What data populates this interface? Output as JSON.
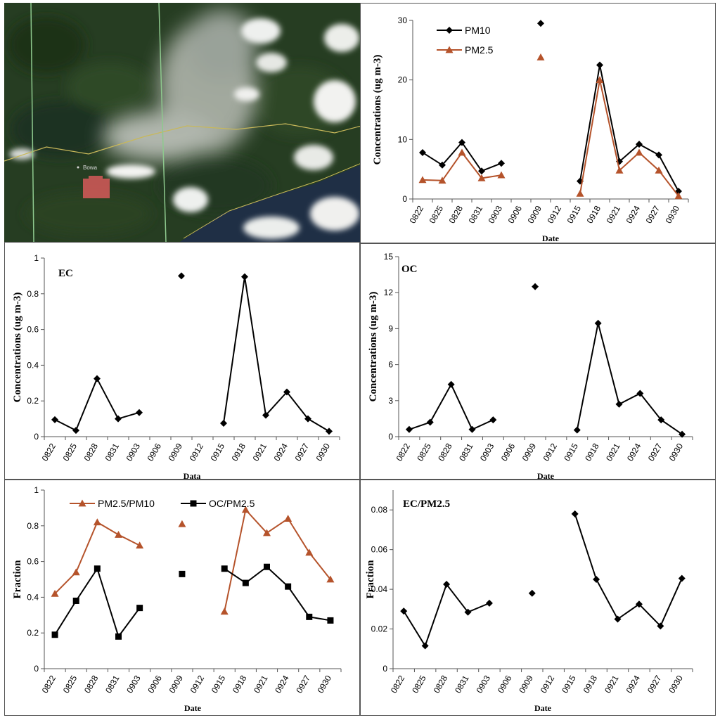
{
  "satellite": {
    "city_label": "Bowa",
    "colors": {
      "forest": "#263d22",
      "smoke": "#c9ccc6",
      "cloud": "#f2f2f0",
      "water": "#1f2f45",
      "fire": "#d65a5a",
      "border": "#c8b85a",
      "grid": "#8ec98e"
    }
  },
  "chart_data": [
    {
      "id": "pm",
      "type": "line",
      "title": "",
      "xlabel": "Date",
      "ylabel": "Concentrations (ug m-3)",
      "ylim": [
        0,
        30
      ],
      "yticks": [
        "0",
        "10",
        "20",
        "30"
      ],
      "categories": [
        "0822",
        "0825",
        "0828",
        "0831",
        "0903",
        "0906",
        "0909",
        "0912",
        "0915",
        "0918",
        "0921",
        "0924",
        "0927",
        "0930"
      ],
      "legend": "top-left",
      "series": [
        {
          "name": "PM10",
          "color": "#000000",
          "marker": "diamond",
          "values": [
            7.8,
            5.7,
            9.5,
            4.7,
            6.0,
            null,
            29.5,
            null,
            3.0,
            22.5,
            6.3,
            9.2,
            7.4,
            1.3
          ]
        },
        {
          "name": "PM2.5",
          "color": "#b5532b",
          "marker": "triangle",
          "values": [
            3.2,
            3.1,
            7.8,
            3.5,
            4.0,
            null,
            23.8,
            null,
            0.9,
            20.0,
            4.8,
            7.8,
            4.8,
            0.5
          ]
        }
      ]
    },
    {
      "id": "ec",
      "type": "line",
      "title": "EC",
      "xlabel": "Data",
      "ylabel": "Concentrations (ug m-3)",
      "ylim": [
        0,
        1
      ],
      "yticks": [
        "0",
        "0.2",
        "0.4",
        "0.6",
        "0.8",
        "1"
      ],
      "categories": [
        "0822",
        "0825",
        "0828",
        "0831",
        "0903",
        "0906",
        "0909",
        "0912",
        "0915",
        "0918",
        "0921",
        "0924",
        "0927",
        "0930"
      ],
      "series": [
        {
          "color": "#000000",
          "marker": "diamond",
          "values": [
            0.095,
            0.035,
            0.325,
            0.1,
            0.135,
            null,
            0.9,
            null,
            0.075,
            0.895,
            0.12,
            0.25,
            0.1,
            0.03
          ]
        }
      ]
    },
    {
      "id": "oc",
      "type": "line",
      "title": "OC",
      "xlabel": "Date",
      "ylabel": "Concentrations (ug m-3)",
      "ylim": [
        0,
        15
      ],
      "yticks": [
        "0",
        "3",
        "6",
        "9",
        "12",
        "15"
      ],
      "categories": [
        "0822",
        "0825",
        "0828",
        "0831",
        "0903",
        "0906",
        "0909",
        "0912",
        "0915",
        "0918",
        "0921",
        "0924",
        "0927",
        "0930"
      ],
      "series": [
        {
          "color": "#000000",
          "marker": "diamond",
          "values": [
            0.6,
            1.2,
            4.35,
            0.6,
            1.4,
            null,
            12.5,
            null,
            0.55,
            9.45,
            2.7,
            3.6,
            1.4,
            0.2
          ]
        }
      ]
    },
    {
      "id": "frac",
      "type": "line",
      "title": "",
      "xlabel": "Date",
      "ylabel": "Fraction",
      "ylim": [
        0,
        1
      ],
      "yticks": [
        "0",
        "0.2",
        "0.4",
        "0.6",
        "0.8",
        "1"
      ],
      "categories": [
        "0822",
        "0825",
        "0828",
        "0831",
        "0903",
        "0906",
        "0909",
        "0912",
        "0915",
        "0918",
        "0921",
        "0924",
        "0927",
        "0930"
      ],
      "legend": "top",
      "series": [
        {
          "name": "PM2.5/PM10",
          "color": "#b5532b",
          "marker": "triangle",
          "values": [
            0.42,
            0.54,
            0.82,
            0.75,
            0.69,
            null,
            0.81,
            null,
            0.32,
            0.89,
            0.76,
            0.84,
            0.65,
            0.5
          ]
        },
        {
          "name": "OC/PM2.5",
          "color": "#000000",
          "marker": "square",
          "values": [
            0.19,
            0.38,
            0.56,
            0.18,
            0.34,
            null,
            0.53,
            null,
            0.56,
            0.48,
            0.57,
            0.46,
            0.29,
            0.27
          ]
        }
      ]
    },
    {
      "id": "ecpm",
      "type": "line",
      "title": "EC/PM2.5",
      "xlabel": "Date",
      "ylabel": "Fraction",
      "ylim": [
        0,
        0.09
      ],
      "yticks": [
        "0",
        "0.02",
        "0.04",
        "0.06",
        "0.08"
      ],
      "categories": [
        "0822",
        "0825",
        "0828",
        "0831",
        "0903",
        "0906",
        "0909",
        "0912",
        "0915",
        "0918",
        "0921",
        "0924",
        "0927",
        "0930"
      ],
      "series": [
        {
          "color": "#000000",
          "marker": "diamond",
          "values": [
            0.029,
            0.0115,
            0.0425,
            0.0285,
            0.033,
            null,
            0.038,
            null,
            0.078,
            0.045,
            0.025,
            0.0325,
            0.0215,
            0.0455
          ]
        }
      ]
    }
  ]
}
